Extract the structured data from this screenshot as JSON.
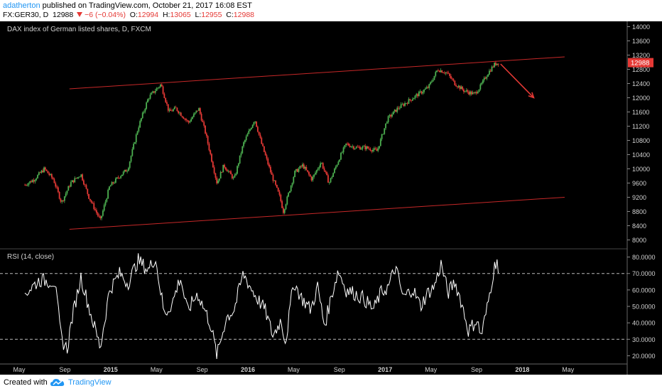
{
  "header": {
    "author": "adatherton",
    "published_text": "published on TradingView.com, October 21, 2017 16:08 EST",
    "symbol": "FX:GER30, D",
    "last_price": "12988",
    "change": "−6 (−0.04%)",
    "o_label": "O:",
    "o_value": "12994",
    "h_label": "H:",
    "h_value": "13065",
    "l_label": "L:",
    "l_value": "12955",
    "c_label": "C:",
    "c_value": "12988"
  },
  "colors": {
    "background": "#000000",
    "up_candle": "#4caf50",
    "down_candle": "#e53935",
    "channel_line": "#c62828",
    "rsi_line": "#ffffff",
    "price_badge": "#e53935",
    "brand": "#2196f3"
  },
  "chart_data": [
    {
      "type": "candlestick",
      "title": "DAX index of German listed shares, D, FXCM",
      "y_ticks": [
        8000,
        8400,
        8800,
        9200,
        9600,
        10000,
        10400,
        10800,
        11200,
        11600,
        12000,
        12400,
        12800,
        13200,
        13600,
        14000
      ],
      "ylim": [
        7750,
        14150
      ],
      "last_price_label": "12988",
      "x_ticks": [
        "May",
        "Sep",
        "2015",
        "May",
        "Sep",
        "2016",
        "May",
        "Sep",
        "2017",
        "May",
        "Sep",
        "2018",
        "May"
      ],
      "x_tick_positions": [
        0,
        4,
        8,
        12,
        16,
        20,
        24,
        28,
        32,
        36,
        40,
        44,
        48
      ],
      "close_anchors": [
        [
          0,
          9550
        ],
        [
          0.8,
          9700
        ],
        [
          1.7,
          10000
        ],
        [
          2.5,
          9700
        ],
        [
          3.2,
          9050
        ],
        [
          4,
          9600
        ],
        [
          4.9,
          9850
        ],
        [
          5.6,
          9200
        ],
        [
          6.6,
          8550
        ],
        [
          7.4,
          9500
        ],
        [
          8.3,
          9800
        ],
        [
          9,
          10000
        ],
        [
          9.9,
          11150
        ],
        [
          10.8,
          12000
        ],
        [
          11.9,
          12380
        ],
        [
          12.6,
          11600
        ],
        [
          13.2,
          11700
        ],
        [
          14.3,
          11300
        ],
        [
          15.2,
          11700
        ],
        [
          15.8,
          11000
        ],
        [
          16.8,
          9600
        ],
        [
          17.4,
          10100
        ],
        [
          18.3,
          9700
        ],
        [
          19.1,
          10700
        ],
        [
          20.1,
          11400
        ],
        [
          20.7,
          10700
        ],
        [
          21.6,
          9800
        ],
        [
          22.3,
          9200
        ],
        [
          22.6,
          8800
        ],
        [
          23.6,
          9900
        ],
        [
          24.3,
          10100
        ],
        [
          25.1,
          9700
        ],
        [
          25.9,
          10200
        ],
        [
          26.6,
          9600
        ],
        [
          27.5,
          10300
        ],
        [
          28.1,
          10700
        ],
        [
          28.9,
          10600
        ],
        [
          29.8,
          10600
        ],
        [
          30.8,
          10500
        ],
        [
          31.7,
          11400
        ],
        [
          32.6,
          11700
        ],
        [
          33.5,
          11900
        ],
        [
          34.4,
          12100
        ],
        [
          35.3,
          12300
        ],
        [
          36.1,
          12800
        ],
        [
          36.9,
          12700
        ],
        [
          37.6,
          12400
        ],
        [
          38.4,
          12200
        ],
        [
          39.3,
          12100
        ],
        [
          39.8,
          12300
        ],
        [
          40.5,
          12700
        ],
        [
          41.1,
          12950
        ],
        [
          41.4,
          12988
        ]
      ],
      "channel_upper": [
        [
          3.9,
          12250
        ],
        [
          47.2,
          13150
        ]
      ],
      "channel_lower": [
        [
          3.9,
          8300
        ],
        [
          47.2,
          9200
        ]
      ],
      "projection_arrow": [
        [
          41.6,
          12950
        ],
        [
          44.5,
          12000
        ]
      ]
    },
    {
      "type": "line",
      "title": "RSI (14, close)",
      "y_ticks": [
        20,
        30,
        40,
        50,
        60,
        70,
        80
      ],
      "y_tick_labels": [
        "20.0000",
        "30.0000",
        "40.0000",
        "50.0000",
        "60.0000",
        "70.0000",
        "80.0000"
      ],
      "ylim": [
        15,
        85
      ],
      "dashed_levels": [
        70,
        30
      ],
      "anchors": [
        [
          0,
          58
        ],
        [
          1.3,
          66
        ],
        [
          2.6,
          65
        ],
        [
          3.2,
          30
        ],
        [
          3.7,
          24
        ],
        [
          4.1,
          42
        ],
        [
          4.9,
          68
        ],
        [
          5.7,
          47
        ],
        [
          6.6,
          25
        ],
        [
          7.4,
          60
        ],
        [
          8.3,
          70
        ],
        [
          9,
          64
        ],
        [
          9.9,
          78
        ],
        [
          10.8,
          72
        ],
        [
          11.4,
          80
        ],
        [
          12.2,
          45
        ],
        [
          12.9,
          52
        ],
        [
          13.6,
          68
        ],
        [
          14.2,
          47
        ],
        [
          15.1,
          58
        ],
        [
          16.2,
          40
        ],
        [
          16.8,
          20
        ],
        [
          17.6,
          43
        ],
        [
          18.3,
          48
        ],
        [
          19.1,
          70
        ],
        [
          19.7,
          62
        ],
        [
          20.3,
          55
        ],
        [
          21,
          48
        ],
        [
          21.7,
          32
        ],
        [
          22.4,
          42
        ],
        [
          22.8,
          28
        ],
        [
          23.5,
          65
        ],
        [
          24.2,
          55
        ],
        [
          25,
          48
        ],
        [
          25.6,
          62
        ],
        [
          26.2,
          38
        ],
        [
          26.8,
          56
        ],
        [
          27.4,
          72
        ],
        [
          28.1,
          60
        ],
        [
          28.8,
          58
        ],
        [
          29.6,
          55
        ],
        [
          30.5,
          48
        ],
        [
          31.1,
          58
        ],
        [
          31.8,
          62
        ],
        [
          32.4,
          74
        ],
        [
          33.1,
          55
        ],
        [
          33.9,
          61
        ],
        [
          34.6,
          50
        ],
        [
          35.2,
          58
        ],
        [
          35.8,
          62
        ],
        [
          36.4,
          76
        ],
        [
          37,
          58
        ],
        [
          37.6,
          65
        ],
        [
          38.2,
          52
        ],
        [
          38.8,
          35
        ],
        [
          39.5,
          42
        ],
        [
          39.9,
          32
        ],
        [
          40.4,
          48
        ],
        [
          41,
          72
        ],
        [
          41.3,
          80
        ],
        [
          41.4,
          70
        ]
      ]
    }
  ],
  "footer": {
    "created_with": "Created with",
    "brand_name": "TradingView",
    "logo_icon": "tradingview-cloud-icon"
  }
}
